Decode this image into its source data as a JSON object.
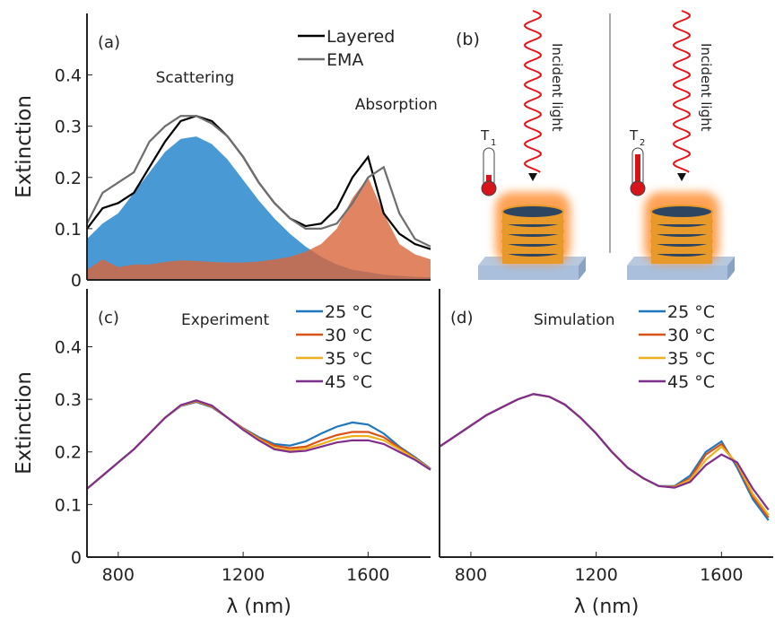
{
  "chart_data": [
    {
      "type": "line",
      "label": "(a)",
      "ylabel": "Extinction",
      "xlim": [
        700,
        1800
      ],
      "ylim": [
        0,
        0.52
      ],
      "yticks": [
        0,
        0.1,
        0.2,
        0.3,
        0.4
      ],
      "legend": "upper right",
      "x": [
        700,
        750,
        800,
        850,
        900,
        950,
        1000,
        1050,
        1100,
        1150,
        1200,
        1250,
        1300,
        1350,
        1400,
        1450,
        1500,
        1550,
        1600,
        1650,
        1700,
        1750,
        1800
      ],
      "series": [
        {
          "name": "Scattering",
          "color": "#3f93d3",
          "fill": true,
          "values": [
            0.08,
            0.11,
            0.13,
            0.17,
            0.21,
            0.25,
            0.275,
            0.28,
            0.265,
            0.235,
            0.195,
            0.155,
            0.12,
            0.09,
            0.065,
            0.045,
            0.03,
            0.02,
            0.015,
            0.01,
            0.008,
            0.006,
            0.005
          ]
        },
        {
          "name": "Absorption",
          "color": "#d9653b",
          "fill": true,
          "values": [
            0.02,
            0.04,
            0.025,
            0.03,
            0.03,
            0.035,
            0.038,
            0.037,
            0.035,
            0.034,
            0.034,
            0.036,
            0.04,
            0.045,
            0.055,
            0.07,
            0.1,
            0.16,
            0.2,
            0.13,
            0.07,
            0.05,
            0.04
          ]
        },
        {
          "name": "Layered",
          "color": "#000000",
          "values": [
            0.1,
            0.14,
            0.15,
            0.17,
            0.22,
            0.27,
            0.31,
            0.32,
            0.31,
            0.28,
            0.24,
            0.19,
            0.15,
            0.12,
            0.105,
            0.11,
            0.14,
            0.2,
            0.24,
            0.13,
            0.09,
            0.07,
            0.06
          ]
        },
        {
          "name": "EMA",
          "color": "#6e6e6e",
          "values": [
            0.11,
            0.17,
            0.19,
            0.21,
            0.27,
            0.3,
            0.32,
            0.32,
            0.305,
            0.28,
            0.24,
            0.19,
            0.15,
            0.12,
            0.1,
            0.1,
            0.11,
            0.15,
            0.2,
            0.22,
            0.13,
            0.08,
            0.065
          ]
        }
      ]
    },
    {
      "type": "line",
      "label": "(c)",
      "title": "Experiment",
      "ylabel": "Extinction",
      "xlabel": "λ (nm)",
      "xlim": [
        700,
        1800
      ],
      "ylim": [
        0,
        0.51
      ],
      "xticks": [
        800,
        1200,
        1600
      ],
      "yticks": [
        0,
        0.1,
        0.2,
        0.3,
        0.4
      ],
      "legend": "upper right",
      "x": [
        700,
        750,
        800,
        850,
        900,
        950,
        1000,
        1050,
        1100,
        1150,
        1200,
        1250,
        1300,
        1350,
        1400,
        1450,
        1500,
        1550,
        1600,
        1650,
        1700,
        1750,
        1800
      ],
      "series": [
        {
          "name": "25 °C",
          "color": "#1f77bd",
          "values": [
            0.13,
            0.155,
            0.18,
            0.205,
            0.235,
            0.265,
            0.287,
            0.295,
            0.285,
            0.265,
            0.245,
            0.228,
            0.215,
            0.212,
            0.22,
            0.235,
            0.248,
            0.256,
            0.252,
            0.235,
            0.21,
            0.19,
            0.168
          ]
        },
        {
          "name": "30 °C",
          "color": "#d95319",
          "values": [
            0.13,
            0.155,
            0.18,
            0.205,
            0.235,
            0.265,
            0.288,
            0.296,
            0.286,
            0.265,
            0.244,
            0.226,
            0.212,
            0.207,
            0.21,
            0.222,
            0.232,
            0.238,
            0.238,
            0.228,
            0.208,
            0.188,
            0.167
          ]
        },
        {
          "name": "35 °C",
          "color": "#edb120",
          "values": [
            0.13,
            0.155,
            0.18,
            0.205,
            0.235,
            0.265,
            0.288,
            0.297,
            0.287,
            0.265,
            0.243,
            0.224,
            0.208,
            0.203,
            0.206,
            0.215,
            0.225,
            0.23,
            0.23,
            0.222,
            0.205,
            0.187,
            0.167
          ]
        },
        {
          "name": "45 °C",
          "color": "#7e2f8e",
          "values": [
            0.13,
            0.155,
            0.18,
            0.205,
            0.235,
            0.265,
            0.289,
            0.298,
            0.288,
            0.265,
            0.242,
            0.222,
            0.205,
            0.2,
            0.202,
            0.21,
            0.218,
            0.222,
            0.222,
            0.215,
            0.2,
            0.185,
            0.166
          ]
        }
      ]
    },
    {
      "type": "line",
      "label": "(d)",
      "title": "Simulation",
      "xlabel": "λ (nm)",
      "xlim": [
        700,
        1765
      ],
      "ylim": [
        0,
        0.51
      ],
      "xticks": [
        800,
        1200,
        1600
      ],
      "legend": "upper right",
      "x": [
        700,
        750,
        800,
        850,
        900,
        950,
        1000,
        1050,
        1100,
        1150,
        1200,
        1250,
        1300,
        1350,
        1400,
        1450,
        1500,
        1550,
        1600,
        1650,
        1700,
        1750
      ],
      "series": [
        {
          "name": "25 °C",
          "color": "#1f77bd",
          "values": [
            0.21,
            0.23,
            0.25,
            0.27,
            0.285,
            0.3,
            0.31,
            0.305,
            0.29,
            0.265,
            0.235,
            0.2,
            0.17,
            0.15,
            0.135,
            0.135,
            0.155,
            0.2,
            0.22,
            0.17,
            0.11,
            0.07
          ]
        },
        {
          "name": "30 °C",
          "color": "#d95319",
          "values": [
            0.21,
            0.23,
            0.25,
            0.27,
            0.285,
            0.3,
            0.31,
            0.305,
            0.29,
            0.265,
            0.235,
            0.2,
            0.17,
            0.15,
            0.135,
            0.134,
            0.15,
            0.195,
            0.215,
            0.175,
            0.115,
            0.075
          ]
        },
        {
          "name": "35 °C",
          "color": "#edb120",
          "values": [
            0.21,
            0.23,
            0.25,
            0.27,
            0.285,
            0.3,
            0.31,
            0.305,
            0.29,
            0.265,
            0.235,
            0.2,
            0.17,
            0.15,
            0.135,
            0.133,
            0.147,
            0.185,
            0.21,
            0.178,
            0.12,
            0.08
          ]
        },
        {
          "name": "45 °C",
          "color": "#7e2f8e",
          "values": [
            0.21,
            0.23,
            0.25,
            0.27,
            0.285,
            0.3,
            0.31,
            0.305,
            0.29,
            0.265,
            0.235,
            0.2,
            0.17,
            0.15,
            0.135,
            0.132,
            0.143,
            0.175,
            0.195,
            0.18,
            0.13,
            0.09
          ]
        }
      ]
    }
  ],
  "panel_b": {
    "label": "(b)",
    "incident_left": "Incident light",
    "incident_right": "Incident light",
    "t_left": "T",
    "t_left_sub": "1",
    "t_right": "T",
    "t_right_sub": "2"
  }
}
